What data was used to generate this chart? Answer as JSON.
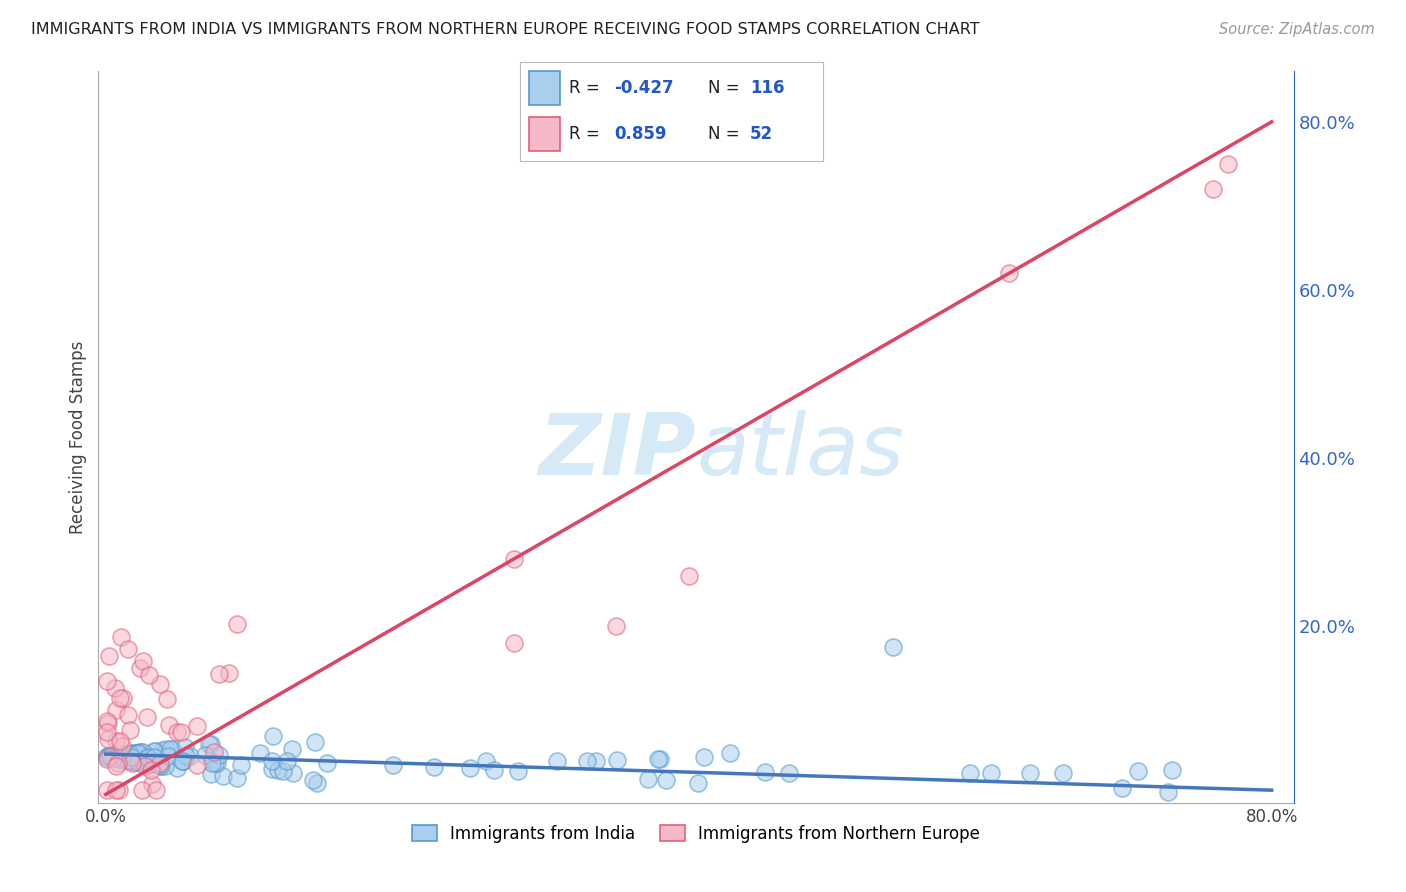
{
  "title": "IMMIGRANTS FROM INDIA VS IMMIGRANTS FROM NORTHERN EUROPE RECEIVING FOOD STAMPS CORRELATION CHART",
  "source": "Source: ZipAtlas.com",
  "ylabel": "Receiving Food Stamps",
  "right_yticks": [
    "20.0%",
    "40.0%",
    "60.0%",
    "80.0%"
  ],
  "right_ytick_vals": [
    0.2,
    0.4,
    0.6,
    0.8
  ],
  "india_R": -0.427,
  "india_N": 116,
  "northern_R": 0.859,
  "northern_N": 52,
  "india_color": "#aacfee",
  "india_edge_color": "#5599cc",
  "northern_color": "#f5b8c8",
  "northern_edge_color": "#e0607a",
  "india_line_color": "#4477bb",
  "northern_line_color": "#dd4466",
  "watermark_color": "#d5e9f7",
  "background_color": "#ffffff",
  "grid_color": "#cccccc",
  "xlim": [
    0.0,
    0.8
  ],
  "ylim": [
    0.0,
    0.85
  ]
}
